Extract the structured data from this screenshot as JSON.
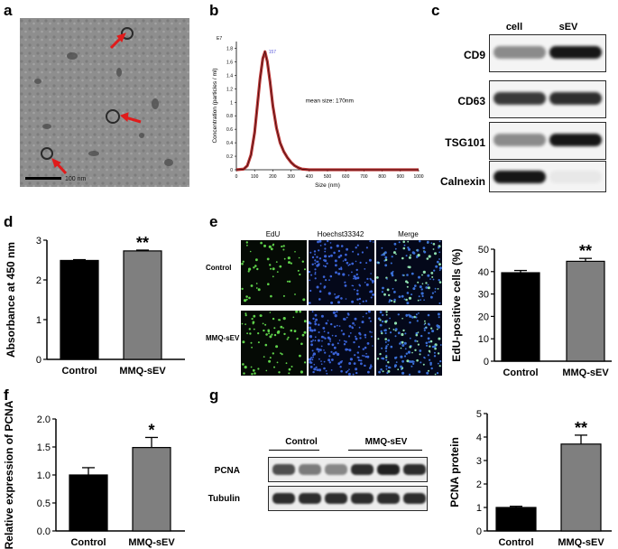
{
  "panel_labels": [
    "a",
    "b",
    "c",
    "d",
    "e",
    "f",
    "g"
  ],
  "panel_a": {
    "scale_bar_label": "100 nm",
    "arrow_icon": "red-arrow-icon",
    "arrow_color": "#e01b1b"
  },
  "panel_c": {
    "columns": [
      "cell",
      "sEV"
    ],
    "rows": [
      "CD9",
      "CD63",
      "TSG101",
      "Calnexin"
    ]
  },
  "panel_e": {
    "columns": [
      "EdU",
      "Hoechst33342",
      "Merge"
    ],
    "rows": [
      "Control",
      "MMQ-sEV"
    ]
  },
  "panel_g": {
    "groups": [
      "Control",
      "MMQ-sEV"
    ],
    "rows": [
      "PCNA",
      "Tubulin"
    ]
  },
  "chart_data": [
    {
      "id": "b",
      "type": "line",
      "title": "",
      "xlabel": "Size (nm)",
      "ylabel": "Concentration (particles / ml)",
      "annotation": "mean size: 170nm",
      "peak_label": "157",
      "y_exponent_label": "E7",
      "xlim": [
        0,
        1000
      ],
      "ylim": [
        0,
        1.9
      ],
      "xticks": [
        "0",
        "100",
        "200",
        "300",
        "400",
        "500",
        "600",
        "700",
        "800",
        "900",
        "1000"
      ],
      "yticks": [
        "0",
        "0.2",
        "0.4",
        "0.6",
        "0.8",
        "1",
        "1.2",
        "1.4",
        "1.6",
        "1.8"
      ],
      "color": "#b01515",
      "x": [
        0,
        40,
        60,
        80,
        100,
        115,
        130,
        145,
        157,
        170,
        185,
        200,
        220,
        240,
        260,
        280,
        300,
        320,
        340,
        360,
        380,
        400,
        450,
        500,
        600,
        700,
        800,
        900,
        1000
      ],
      "y": [
        0,
        0.01,
        0.06,
        0.22,
        0.55,
        0.95,
        1.35,
        1.65,
        1.75,
        1.6,
        1.3,
        0.95,
        0.62,
        0.4,
        0.27,
        0.18,
        0.11,
        0.06,
        0.03,
        0.01,
        0.005,
        0,
        0,
        0,
        0,
        0,
        0,
        0,
        0
      ]
    },
    {
      "id": "d",
      "type": "bar",
      "title": "",
      "categories": [
        "Control",
        "MMQ-sEV"
      ],
      "values": [
        2.49,
        2.73
      ],
      "errors": [
        0.02,
        0.02
      ],
      "significance": [
        "",
        "**"
      ],
      "xlabel": "",
      "ylabel": "Absorbance at 450 nm",
      "ylim": [
        0,
        3
      ],
      "yticks": [
        "0",
        "1",
        "2",
        "3"
      ],
      "colors": [
        "#000000",
        "#7f7f7f"
      ]
    },
    {
      "id": "e",
      "type": "bar",
      "title": "",
      "categories": [
        "Control",
        "MMQ-sEV"
      ],
      "values": [
        39.5,
        44.6
      ],
      "errors": [
        1.0,
        1.3
      ],
      "significance": [
        "",
        "**"
      ],
      "xlabel": "",
      "ylabel": "EdU-positive  cells (%)",
      "ylim": [
        0,
        50
      ],
      "yticks": [
        "0",
        "10",
        "20",
        "30",
        "40",
        "50"
      ],
      "colors": [
        "#000000",
        "#7f7f7f"
      ]
    },
    {
      "id": "f",
      "type": "bar",
      "title": "",
      "categories": [
        "Control",
        "MMQ-sEV"
      ],
      "values": [
        1.0,
        1.49
      ],
      "errors": [
        0.13,
        0.18
      ],
      "significance": [
        "",
        "*"
      ],
      "xlabel": "",
      "ylabel": "Relative expression of PCNA",
      "ylim": [
        0,
        2.0
      ],
      "yticks": [
        "0.0",
        "0.5",
        "1.0",
        "1.5",
        "2.0"
      ],
      "colors": [
        "#000000",
        "#7f7f7f"
      ]
    },
    {
      "id": "g",
      "type": "bar",
      "title": "",
      "categories": [
        "Control",
        "MMQ-sEV"
      ],
      "values": [
        1.0,
        3.7
      ],
      "errors": [
        0.05,
        0.38
      ],
      "significance": [
        "",
        "**"
      ],
      "xlabel": "",
      "ylabel": "PCNA protein",
      "ylim": [
        0,
        5
      ],
      "yticks": [
        "0",
        "1",
        "2",
        "3",
        "4",
        "5"
      ],
      "colors": [
        "#000000",
        "#7f7f7f"
      ]
    }
  ]
}
